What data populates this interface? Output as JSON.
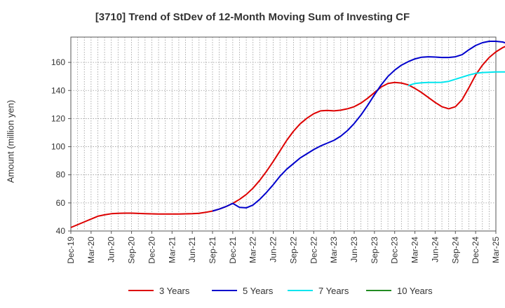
{
  "chart_data": {
    "type": "line",
    "title": "[3710]  Trend of StDev of 12-Month Moving Sum of Investing CF",
    "ylabel": "Amount (million yen)",
    "xlabel": "",
    "ylim": [
      40,
      178
    ],
    "yticks": [
      40,
      60,
      80,
      100,
      120,
      140,
      160
    ],
    "xticks": [
      "Dec-19",
      "Mar-20",
      "Jun-20",
      "Sep-20",
      "Dec-20",
      "Mar-21",
      "Jun-21",
      "Sep-21",
      "Dec-21",
      "Mar-22",
      "Jun-22",
      "Sep-22",
      "Dec-22",
      "Mar-23",
      "Jun-23",
      "Sep-23",
      "Dec-23",
      "Mar-24",
      "Jun-24",
      "Sep-24",
      "Dec-24",
      "Mar-25"
    ],
    "grid": true,
    "legend_position": "bottom",
    "series": [
      {
        "name": "3 Years",
        "color": "#dd0000",
        "start_index": 0,
        "values": [
          42.5,
          44.5,
          46.5,
          48.5,
          50.5,
          51.5,
          52.3,
          52.6,
          52.7,
          52.7,
          52.5,
          52.3,
          52.2,
          52.1,
          52.1,
          52.1,
          52.1,
          52.2,
          52.3,
          52.6,
          53.3,
          54.2,
          55.6,
          57.4,
          59.7,
          62.5,
          66,
          70.5,
          76,
          82.5,
          89.5,
          97,
          104.5,
          111,
          116.3,
          120.3,
          123.5,
          125.5,
          125.8,
          125.5,
          126,
          127,
          128.5,
          131,
          134.5,
          138.5,
          142.5,
          145,
          145.7,
          145.3,
          144,
          141.5,
          138.5,
          135,
          131.5,
          128.5,
          127,
          128.5,
          133.5,
          142,
          151,
          158,
          163.5,
          167.5,
          170.5,
          172.5,
          174
        ]
      },
      {
        "name": "5 Years",
        "color": "#0000cc",
        "start_index": 21,
        "values": [
          54.2,
          55.6,
          57.4,
          59.7,
          56.8,
          56.5,
          58.5,
          62.5,
          67.5,
          73,
          79,
          84,
          88,
          92,
          95,
          98,
          100.5,
          102.5,
          104.5,
          107.5,
          111.5,
          116.5,
          122.5,
          129.5,
          137,
          144,
          150,
          154.5,
          158,
          160.5,
          162.5,
          163.7,
          164,
          163.8,
          163.5,
          163.5,
          164,
          165.5,
          169,
          172,
          174,
          175,
          175,
          174.5,
          173,
          172.5
        ]
      },
      {
        "name": "7 Years",
        "color": "#00e5ee",
        "start_index": 50,
        "values": [
          143.5,
          145,
          145.5,
          145.7,
          145.7,
          145.8,
          146.5,
          148,
          149.5,
          151,
          152.2,
          152.8,
          153,
          153.2,
          153.2,
          153.3,
          153.3
        ]
      },
      {
        "name": "10 Years",
        "color": "#228b22",
        "start_index": 0,
        "values": []
      }
    ]
  }
}
